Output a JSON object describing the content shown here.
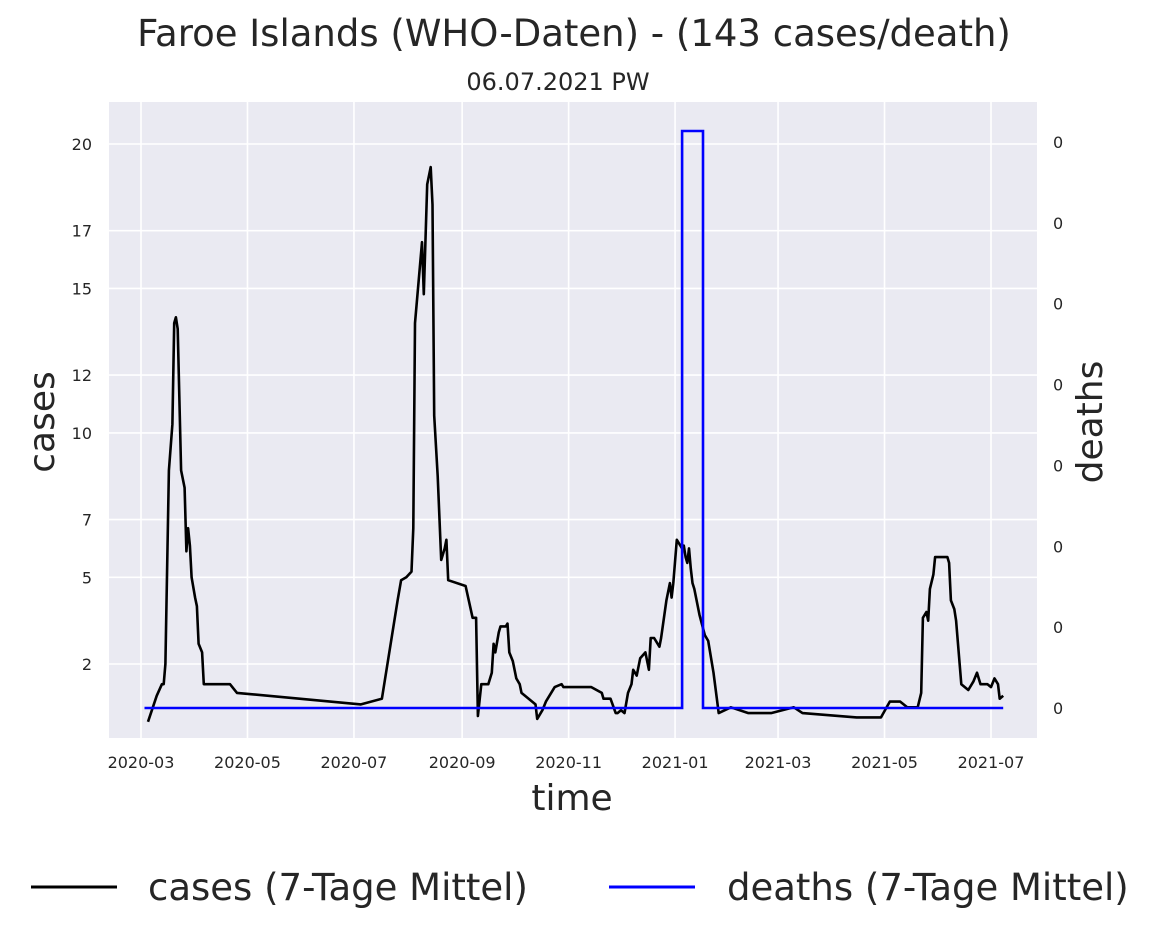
{
  "chart_data": {
    "type": "line",
    "title": "Faroe Islands (WHO-Daten) - (143 cases/death)",
    "subtitle": "06.07.2021 PW",
    "xlabel": "time",
    "ylabel": "cases",
    "y2label": "deaths",
    "x_ticks": [
      "2020-03",
      "2020-05",
      "2020-07",
      "2020-09",
      "2020-11",
      "2021-01",
      "2021-03",
      "2021-05",
      "2021-07"
    ],
    "y_ticks": [
      "2",
      "5",
      "7",
      "10",
      "12",
      "15",
      "17",
      "20"
    ],
    "y2_ticks": [
      "0",
      "0",
      "0",
      "0",
      "0",
      "0",
      "0",
      "0"
    ],
    "ylim": [
      -0.8,
      21.2
    ],
    "grid": true,
    "legend_position": "bottom",
    "colors": {
      "cases": "#000000",
      "deaths": "#0000ff",
      "background": "#eaeaf2",
      "grid": "#ffffff"
    },
    "series": [
      {
        "name": "cases (7-Tage Mittel)",
        "axis": "left",
        "points": [
          [
            "2020-03-05",
            0.0
          ],
          [
            "2020-03-10",
            0.9
          ],
          [
            "2020-03-13",
            1.3
          ],
          [
            "2020-03-14",
            1.3
          ],
          [
            "2020-03-15",
            2.0
          ],
          [
            "2020-03-17",
            8.7
          ],
          [
            "2020-03-19",
            10.3
          ],
          [
            "2020-03-20",
            13.8
          ],
          [
            "2020-03-21",
            14.0
          ],
          [
            "2020-03-22",
            13.6
          ],
          [
            "2020-03-24",
            8.7
          ],
          [
            "2020-03-26",
            8.1
          ],
          [
            "2020-03-27",
            5.9
          ],
          [
            "2020-03-28",
            6.7
          ],
          [
            "2020-03-29",
            6.1
          ],
          [
            "2020-03-30",
            5.0
          ],
          [
            "2020-04-01",
            4.3
          ],
          [
            "2020-04-02",
            4.0
          ],
          [
            "2020-04-03",
            2.7
          ],
          [
            "2020-04-05",
            2.4
          ],
          [
            "2020-04-06",
            1.3
          ],
          [
            "2020-04-21",
            1.3
          ],
          [
            "2020-04-25",
            1.0
          ],
          [
            "2020-07-05",
            0.6
          ],
          [
            "2020-07-17",
            0.8
          ],
          [
            "2020-07-26",
            4.2
          ],
          [
            "2020-07-28",
            4.9
          ],
          [
            "2020-07-31",
            5.0
          ],
          [
            "2020-08-03",
            5.2
          ],
          [
            "2020-08-04",
            6.7
          ],
          [
            "2020-08-05",
            13.8
          ],
          [
            "2020-08-09",
            16.6
          ],
          [
            "2020-08-10",
            14.8
          ],
          [
            "2020-08-12",
            18.6
          ],
          [
            "2020-08-14",
            19.2
          ],
          [
            "2020-08-15",
            17.9
          ],
          [
            "2020-08-16",
            10.6
          ],
          [
            "2020-08-18",
            8.5
          ],
          [
            "2020-08-20",
            5.6
          ],
          [
            "2020-08-22",
            6.0
          ],
          [
            "2020-08-23",
            6.3
          ],
          [
            "2020-08-24",
            4.9
          ],
          [
            "2020-09-03",
            4.7
          ],
          [
            "2020-09-07",
            3.6
          ],
          [
            "2020-09-09",
            3.6
          ],
          [
            "2020-09-10",
            0.2
          ],
          [
            "2020-09-12",
            1.3
          ],
          [
            "2020-09-16",
            1.3
          ],
          [
            "2020-09-18",
            1.7
          ],
          [
            "2020-09-19",
            2.7
          ],
          [
            "2020-09-20",
            2.4
          ],
          [
            "2020-09-22",
            3.1
          ],
          [
            "2020-09-23",
            3.3
          ],
          [
            "2020-09-26",
            3.3
          ],
          [
            "2020-09-27",
            3.4
          ],
          [
            "2020-09-28",
            2.4
          ],
          [
            "2020-09-30",
            2.1
          ],
          [
            "2020-10-02",
            1.5
          ],
          [
            "2020-10-04",
            1.3
          ],
          [
            "2020-10-05",
            1.0
          ],
          [
            "2020-10-13",
            0.6
          ],
          [
            "2020-10-14",
            0.1
          ],
          [
            "2020-10-17",
            0.4
          ],
          [
            "2020-10-19",
            0.7
          ],
          [
            "2020-10-24",
            1.2
          ],
          [
            "2020-10-28",
            1.3
          ],
          [
            "2020-10-29",
            1.2
          ],
          [
            "2020-11-03",
            1.2
          ],
          [
            "2020-11-14",
            1.2
          ],
          [
            "2020-11-20",
            1.0
          ],
          [
            "2020-11-21",
            0.8
          ],
          [
            "2020-11-25",
            0.8
          ],
          [
            "2020-11-28",
            0.3
          ],
          [
            "2020-11-29",
            0.3
          ],
          [
            "2020-12-01",
            0.4
          ],
          [
            "2020-12-03",
            0.3
          ],
          [
            "2020-12-05",
            1.0
          ],
          [
            "2020-12-07",
            1.3
          ],
          [
            "2020-12-08",
            1.8
          ],
          [
            "2020-12-10",
            1.6
          ],
          [
            "2020-12-12",
            2.2
          ],
          [
            "2020-12-15",
            2.4
          ],
          [
            "2020-12-17",
            1.8
          ],
          [
            "2020-12-18",
            2.9
          ],
          [
            "2020-12-20",
            2.9
          ],
          [
            "2020-12-23",
            2.6
          ],
          [
            "2020-12-24",
            2.9
          ],
          [
            "2020-12-27",
            4.2
          ],
          [
            "2020-12-29",
            4.8
          ],
          [
            "2020-12-30",
            4.3
          ],
          [
            "2020-12-31",
            4.8
          ],
          [
            "2021-01-02",
            6.3
          ],
          [
            "2021-01-05",
            6.0
          ],
          [
            "2021-01-06",
            6.1
          ],
          [
            "2021-01-07",
            5.7
          ],
          [
            "2021-01-08",
            5.5
          ],
          [
            "2021-01-09",
            6.0
          ],
          [
            "2021-01-10",
            5.3
          ],
          [
            "2021-01-11",
            4.8
          ],
          [
            "2021-01-12",
            4.6
          ],
          [
            "2021-01-15",
            3.7
          ],
          [
            "2021-01-18",
            3.0
          ],
          [
            "2021-01-20",
            2.8
          ],
          [
            "2021-01-23",
            1.7
          ],
          [
            "2021-01-26",
            0.3
          ],
          [
            "2021-02-02",
            0.5
          ],
          [
            "2021-02-12",
            0.3
          ],
          [
            "2021-02-25",
            0.3
          ],
          [
            "2021-03-10",
            0.5
          ],
          [
            "2021-03-15",
            0.3
          ],
          [
            "2021-04-15",
            0.15
          ],
          [
            "2021-04-29",
            0.15
          ],
          [
            "2021-05-04",
            0.7
          ],
          [
            "2021-05-10",
            0.7
          ],
          [
            "2021-05-14",
            0.5
          ],
          [
            "2021-05-20",
            0.5
          ],
          [
            "2021-05-22",
            1.0
          ],
          [
            "2021-05-23",
            3.6
          ],
          [
            "2021-05-25",
            3.8
          ],
          [
            "2021-05-26",
            3.5
          ],
          [
            "2021-05-27",
            4.6
          ],
          [
            "2021-05-29",
            5.1
          ],
          [
            "2021-05-30",
            5.7
          ],
          [
            "2021-06-06",
            5.7
          ],
          [
            "2021-06-07",
            5.5
          ],
          [
            "2021-06-08",
            4.2
          ],
          [
            "2021-06-10",
            3.9
          ],
          [
            "2021-06-11",
            3.5
          ],
          [
            "2021-06-14",
            1.3
          ],
          [
            "2021-06-18",
            1.1
          ],
          [
            "2021-06-21",
            1.4
          ],
          [
            "2021-06-23",
            1.7
          ],
          [
            "2021-06-25",
            1.3
          ],
          [
            "2021-06-29",
            1.3
          ],
          [
            "2021-07-01",
            1.2
          ],
          [
            "2021-07-03",
            1.5
          ],
          [
            "2021-07-05",
            1.3
          ],
          [
            "2021-07-06",
            0.8
          ],
          [
            "2021-07-08",
            0.9
          ]
        ]
      },
      {
        "name": "deaths (7-Tage Mittel)",
        "axis": "right",
        "step": true,
        "points": [
          [
            "2020-03-03",
            0
          ],
          [
            "2021-01-05",
            0
          ],
          [
            "2021-01-05",
            1
          ],
          [
            "2021-01-17",
            1
          ],
          [
            "2021-01-17",
            0
          ],
          [
            "2021-07-08",
            0
          ]
        ]
      }
    ]
  }
}
